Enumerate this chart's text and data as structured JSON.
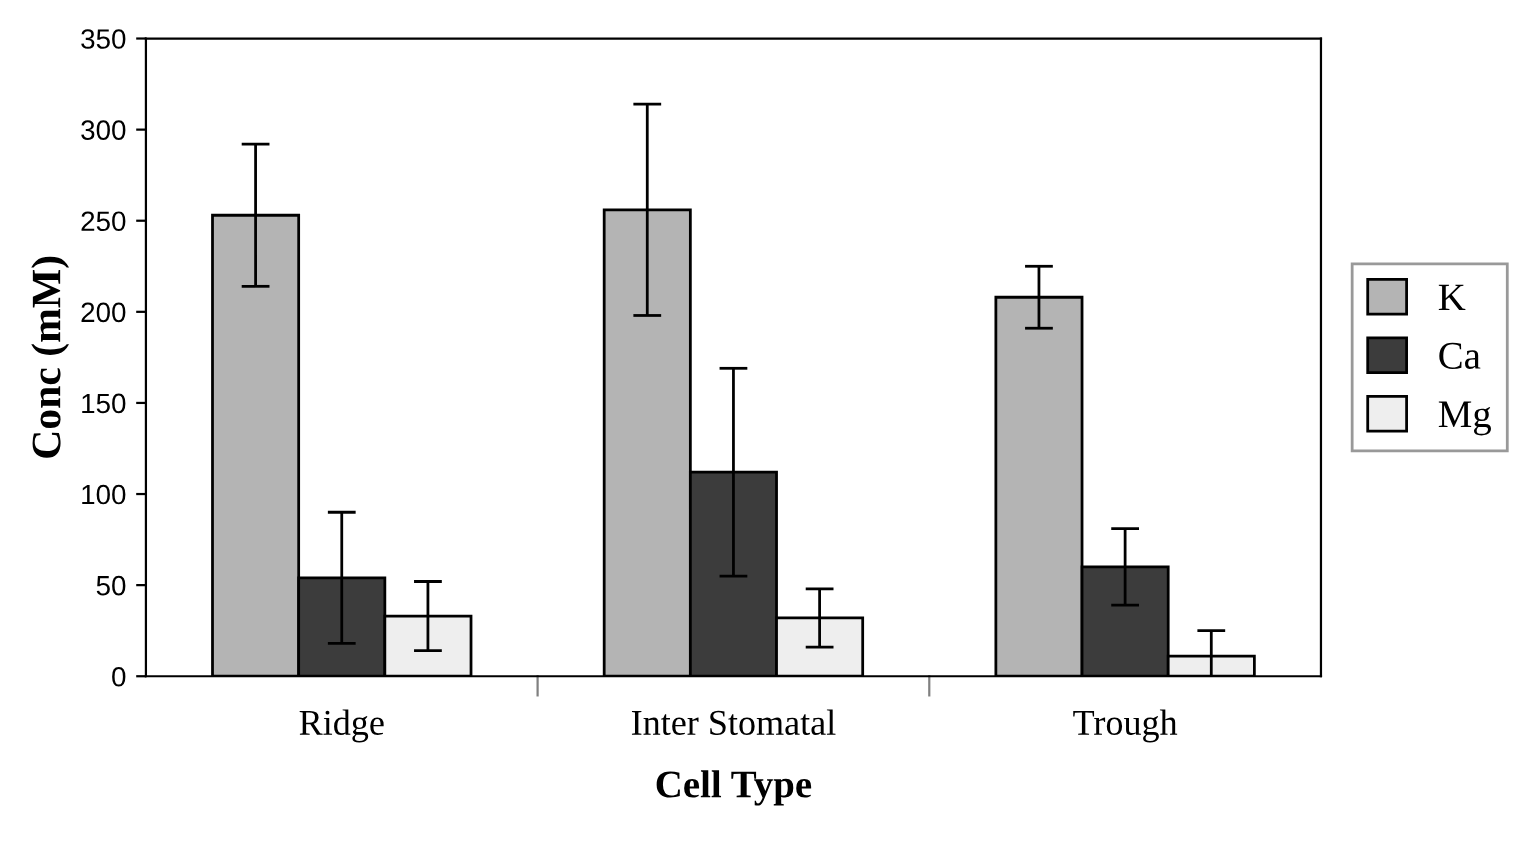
{
  "chart_data": {
    "type": "bar",
    "xlabel": "Cell Type",
    "ylabel": "Conc (mM)",
    "categories": [
      "Ridge",
      "Inter Stomatal",
      "Trough"
    ],
    "series": [
      {
        "name": "K",
        "color": "#b4b4b4",
        "values": [
          253,
          256,
          208
        ],
        "errors": [
          39,
          58,
          17
        ]
      },
      {
        "name": "Ca",
        "color": "#3c3c3c",
        "values": [
          54,
          112,
          60
        ],
        "errors": [
          36,
          57,
          21
        ]
      },
      {
        "name": "Mg",
        "color": "#eeeeee",
        "values": [
          33,
          32,
          11
        ],
        "errors": [
          19,
          16,
          14
        ]
      }
    ],
    "ylim": [
      0,
      350
    ],
    "yticks": [
      0,
      50,
      100,
      150,
      200,
      250,
      300,
      350
    ],
    "grid": false,
    "legend": "right"
  }
}
